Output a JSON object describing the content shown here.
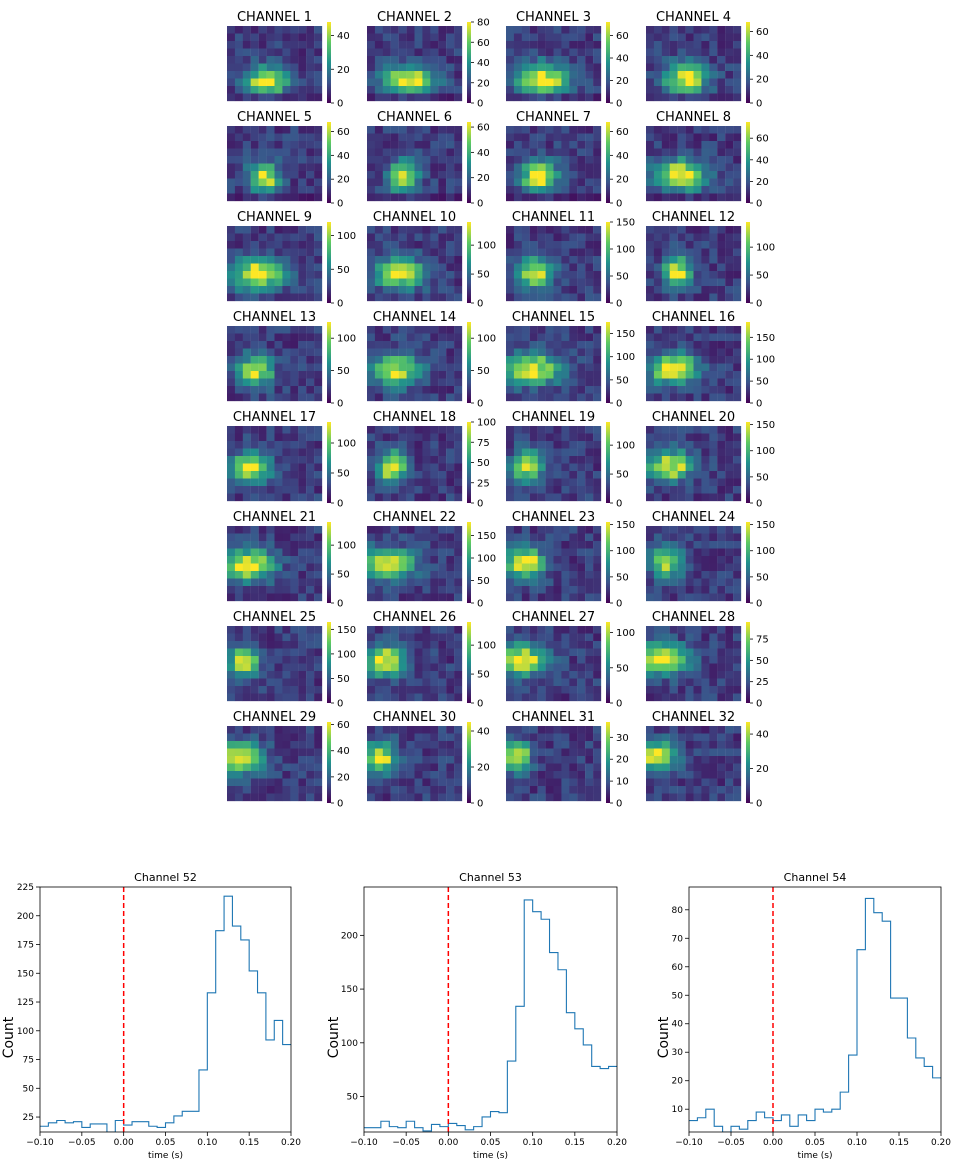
{
  "chart_data": [
    {
      "type": "heatmap",
      "panels": [
        {
          "title": "CHANNEL 1",
          "ticks": [
            0,
            20,
            40
          ],
          "max": 48
        },
        {
          "title": "CHANNEL 2",
          "ticks": [
            0,
            20,
            40,
            60,
            80
          ],
          "max": 80
        },
        {
          "title": "CHANNEL 3",
          "ticks": [
            0,
            20,
            40,
            60
          ],
          "max": 72
        },
        {
          "title": "CHANNEL 4",
          "ticks": [
            0,
            20,
            40,
            60
          ],
          "max": 68
        },
        {
          "title": "CHANNEL 5",
          "ticks": [
            0,
            20,
            40,
            60
          ],
          "max": 68
        },
        {
          "title": "CHANNEL 6",
          "ticks": [
            0,
            20,
            40,
            60
          ],
          "max": 64
        },
        {
          "title": "CHANNEL 7",
          "ticks": [
            0,
            20,
            40,
            60
          ],
          "max": 68
        },
        {
          "title": "CHANNEL 8",
          "ticks": [
            0,
            20,
            40,
            60
          ],
          "max": 75
        },
        {
          "title": "CHANNEL 9",
          "ticks": [
            0,
            50,
            100
          ],
          "max": 120
        },
        {
          "title": "CHANNEL 10",
          "ticks": [
            0,
            50,
            100
          ],
          "max": 140
        },
        {
          "title": "CHANNEL 11",
          "ticks": [
            0,
            50,
            100,
            150
          ],
          "max": 150
        },
        {
          "title": "CHANNEL 12",
          "ticks": [
            0,
            50,
            100
          ],
          "max": 145
        },
        {
          "title": "CHANNEL 13",
          "ticks": [
            0,
            50,
            100
          ],
          "max": 125
        },
        {
          "title": "CHANNEL 14",
          "ticks": [
            0,
            50,
            100
          ],
          "max": 125
        },
        {
          "title": "CHANNEL 15",
          "ticks": [
            0,
            50,
            100,
            150
          ],
          "max": 175
        },
        {
          "title": "CHANNEL 16",
          "ticks": [
            0,
            50,
            100,
            150
          ],
          "max": 185
        },
        {
          "title": "CHANNEL 17",
          "ticks": [
            0,
            50,
            100
          ],
          "max": 135
        },
        {
          "title": "CHANNEL 18",
          "ticks": [
            0,
            25,
            50,
            75,
            100
          ],
          "max": 100
        },
        {
          "title": "CHANNEL 19",
          "ticks": [
            0,
            50,
            100
          ],
          "max": 140
        },
        {
          "title": "CHANNEL 20",
          "ticks": [
            0,
            50,
            100,
            150
          ],
          "max": 155
        },
        {
          "title": "CHANNEL 21",
          "ticks": [
            0,
            50,
            100
          ],
          "max": 140
        },
        {
          "title": "CHANNEL 22",
          "ticks": [
            0,
            50,
            100,
            150
          ],
          "max": 180
        },
        {
          "title": "CHANNEL 23",
          "ticks": [
            0,
            50,
            100,
            150
          ],
          "max": 155
        },
        {
          "title": "CHANNEL 24",
          "ticks": [
            0,
            50,
            100,
            150
          ],
          "max": 155
        },
        {
          "title": "CHANNEL 25",
          "ticks": [
            0,
            50,
            100,
            150
          ],
          "max": 165
        },
        {
          "title": "CHANNEL 26",
          "ticks": [
            0,
            50,
            100
          ],
          "max": 140
        },
        {
          "title": "CHANNEL 27",
          "ticks": [
            0,
            50,
            100
          ],
          "max": 115
        },
        {
          "title": "CHANNEL 28",
          "ticks": [
            0,
            25,
            50,
            75
          ],
          "max": 95
        },
        {
          "title": "CHANNEL 29",
          "ticks": [
            0,
            20,
            40,
            60
          ],
          "max": 62
        },
        {
          "title": "CHANNEL 30",
          "ticks": [
            0,
            20,
            40
          ],
          "max": 45
        },
        {
          "title": "CHANNEL 31",
          "ticks": [
            0,
            10,
            20,
            30
          ],
          "max": 37
        },
        {
          "title": "CHANNEL 32",
          "ticks": [
            0,
            20,
            40
          ],
          "max": 47
        }
      ],
      "colormap": [
        "#440154",
        "#3b528b",
        "#21918c",
        "#5ec962",
        "#fde725"
      ],
      "grid": false
    },
    {
      "type": "line",
      "style": "step",
      "title": "Channel 52",
      "xlabel": "time (s)",
      "ylabel": "Count",
      "xlim": [
        -0.1,
        0.2
      ],
      "ylim": [
        12,
        225
      ],
      "xticks": [
        -0.1,
        -0.05,
        0.0,
        0.05,
        0.1,
        0.15,
        0.2
      ],
      "xtick_labels": [
        "−0.10",
        "−0.05",
        "0.00",
        "0.05",
        "0.10",
        "0.15",
        "0.20"
      ],
      "yticks": [
        25,
        50,
        75,
        100,
        125,
        150,
        175,
        200,
        225
      ],
      "bin_edges_start": -0.1,
      "bin_width": 0.01,
      "counts": [
        17,
        20,
        22,
        20,
        21,
        16,
        19,
        19,
        12,
        22,
        18,
        21,
        21,
        17,
        16,
        20,
        26,
        30,
        30,
        66,
        133,
        187,
        217,
        191,
        179,
        152,
        133,
        92,
        109,
        88
      ],
      "marker_line": {
        "x": 0.0,
        "color": "#ff0000",
        "style": "dashed"
      },
      "line_color": "#1f77b4"
    },
    {
      "type": "line",
      "style": "step",
      "title": "Channel 53",
      "xlabel": "time (s)",
      "ylabel": "Count",
      "xlim": [
        -0.1,
        0.2
      ],
      "ylim": [
        17,
        245
      ],
      "xticks": [
        -0.1,
        -0.05,
        0.0,
        0.05,
        0.1,
        0.15,
        0.2
      ],
      "xtick_labels": [
        "−0.10",
        "−0.05",
        "0.00",
        "0.05",
        "0.10",
        "0.15",
        "0.20"
      ],
      "yticks": [
        50,
        100,
        150,
        200
      ],
      "bin_edges_start": -0.1,
      "bin_width": 0.01,
      "counts": [
        21,
        21,
        27,
        22,
        21,
        27,
        21,
        18,
        24,
        22,
        25,
        23,
        19,
        22,
        31,
        36,
        35,
        83,
        134,
        233,
        222,
        215,
        184,
        168,
        128,
        113,
        98,
        78,
        76,
        78
      ],
      "marker_line": {
        "x": 0.0,
        "color": "#ff0000",
        "style": "dashed"
      },
      "line_color": "#1f77b4"
    },
    {
      "type": "line",
      "style": "step",
      "title": "Channel 54",
      "xlabel": "time (s)",
      "ylabel": "Count",
      "xlim": [
        -0.1,
        0.2
      ],
      "ylim": [
        2,
        88
      ],
      "xticks": [
        -0.1,
        -0.05,
        0.0,
        0.05,
        0.1,
        0.15,
        0.2
      ],
      "xtick_labels": [
        "−0.10",
        "−0.05",
        "0.00",
        "0.05",
        "0.10",
        "0.15",
        "0.20"
      ],
      "yticks": [
        10,
        20,
        30,
        40,
        50,
        60,
        70,
        80
      ],
      "bin_edges_start": -0.1,
      "bin_width": 0.01,
      "counts": [
        6,
        7,
        10,
        4,
        2,
        4,
        3,
        6,
        9,
        7,
        6,
        8,
        4,
        8,
        6,
        10,
        9,
        10,
        16,
        29,
        66,
        84,
        79,
        76,
        49,
        49,
        35,
        28,
        25,
        21
      ],
      "marker_line": {
        "x": 0.0,
        "color": "#ff0000",
        "style": "dashed"
      },
      "line_color": "#1f77b4"
    }
  ]
}
